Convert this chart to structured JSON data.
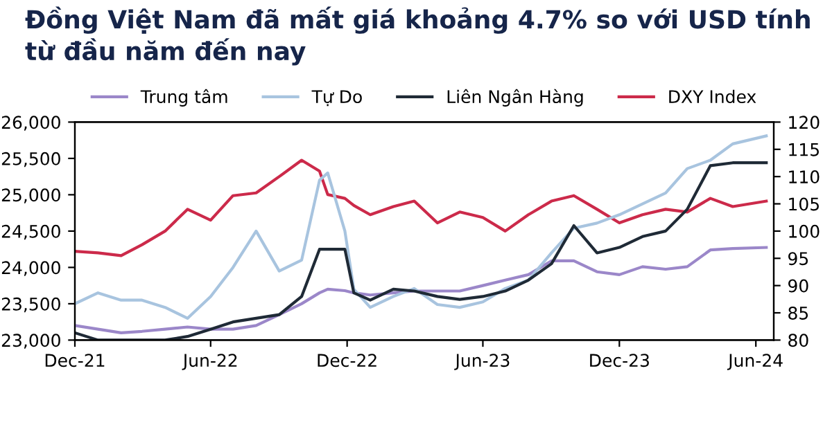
{
  "chart_data": {
    "type": "line",
    "title": "Đồng Việt Nam đã mất giá khoảng 4.7% so với USD tính từ đầu năm đến nay",
    "x": [
      "2021-12-01",
      "2022-01-01",
      "2022-02-01",
      "2022-03-01",
      "2022-04-01",
      "2022-05-01",
      "2022-06-01",
      "2022-07-01",
      "2022-08-01",
      "2022-09-01",
      "2022-10-01",
      "2022-10-25",
      "2022-11-05",
      "2022-11-28",
      "2022-12-10",
      "2023-01-01",
      "2023-02-01",
      "2023-03-01",
      "2023-04-01",
      "2023-05-01",
      "2023-06-01",
      "2023-07-01",
      "2023-08-01",
      "2023-09-01",
      "2023-10-01",
      "2023-11-01",
      "2023-12-01",
      "2024-01-01",
      "2024-02-01",
      "2024-03-01",
      "2024-04-01",
      "2024-05-01",
      "2024-06-15"
    ],
    "series": [
      {
        "name": "Trung tâm",
        "color": "#9b87c9",
        "values": [
          23200,
          23150,
          23100,
          23120,
          23150,
          23180,
          23150,
          23150,
          23200,
          23350,
          23500,
          23650,
          23700,
          23680,
          23650,
          23620,
          23650,
          23675,
          23675,
          23675,
          23750,
          23825,
          23900,
          24090,
          24090,
          23940,
          23900,
          24010,
          23975,
          24010,
          24240,
          24260,
          24275
        ]
      },
      {
        "name": "Tự Do",
        "color": "#a8c4df",
        "values": [
          23500,
          23650,
          23550,
          23550,
          23450,
          23300,
          23600,
          24000,
          24500,
          23950,
          24100,
          25200,
          25300,
          24500,
          23700,
          23450,
          23600,
          23710,
          23490,
          23450,
          23525,
          23710,
          23825,
          24200,
          24540,
          24610,
          24725,
          24875,
          25025,
          25360,
          25475,
          25700,
          25810
        ]
      },
      {
        "name": "Liên Ngân Hàng",
        "color": "#1f2a36",
        "values": [
          23100,
          23000,
          23000,
          23000,
          23000,
          23050,
          23150,
          23250,
          23300,
          23350,
          23600,
          24250,
          24250,
          24250,
          23650,
          23550,
          23700,
          23675,
          23600,
          23560,
          23600,
          23675,
          23825,
          24050,
          24575,
          24200,
          24275,
          24425,
          24500,
          24800,
          25400,
          25440,
          25440
        ]
      },
      {
        "name": "DXY Index",
        "color": "#cc2a4a",
        "axis": "y2",
        "values": [
          96.3,
          96,
          95.5,
          97.5,
          100,
          104,
          102,
          106.5,
          107,
          110,
          113,
          111,
          106.7,
          106,
          104.7,
          103,
          104.5,
          105.5,
          101.5,
          103.5,
          102.5,
          100,
          103,
          105.5,
          106.5,
          104,
          101.5,
          103,
          104,
          103.5,
          106,
          104.5,
          105.5
        ]
      }
    ],
    "xlim": [
      "2021-12-01",
      "2024-06-25"
    ],
    "xticks": [
      {
        "value": "2021-12-01",
        "label": "Dec-21"
      },
      {
        "value": "2022-06-01",
        "label": "Jun-22"
      },
      {
        "value": "2022-12-01",
        "label": "Dec-22"
      },
      {
        "value": "2023-06-01",
        "label": "Jun-23"
      },
      {
        "value": "2023-12-01",
        "label": "Dec-23"
      },
      {
        "value": "2024-06-01",
        "label": "Jun-24"
      }
    ],
    "ylim": [
      23000,
      26000
    ],
    "yticks": [
      {
        "value": 23000,
        "label": "23,000"
      },
      {
        "value": 23500,
        "label": "23,500"
      },
      {
        "value": 24000,
        "label": "24,000"
      },
      {
        "value": 24500,
        "label": "24,500"
      },
      {
        "value": 25000,
        "label": "25,000"
      },
      {
        "value": 25500,
        "label": "25,500"
      },
      {
        "value": 26000,
        "label": "26,000"
      }
    ],
    "y2lim": [
      80,
      120
    ],
    "y2ticks": [
      80,
      85,
      90,
      95,
      100,
      105,
      110,
      115,
      120
    ],
    "legend": "top",
    "grid": false
  }
}
